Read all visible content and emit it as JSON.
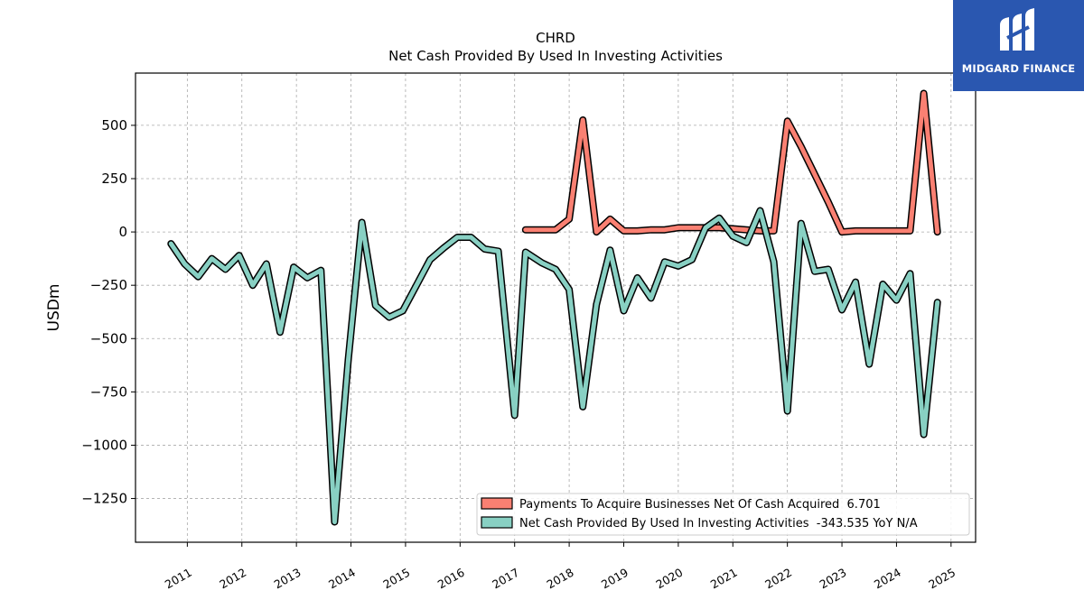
{
  "brand": {
    "name": "MIDGARD FINANCE",
    "color": "#2a57b0"
  },
  "chart_data": {
    "type": "line",
    "title": "CHRD",
    "subtitle": "Net Cash Provided By Used In Investing Activities",
    "ylabel": "USDm",
    "xlabel": "",
    "xlim": [
      2010.05,
      2025.45
    ],
    "ylim": [
      -1455,
      745
    ],
    "yticks": [
      500,
      250,
      0,
      -250,
      -500,
      -750,
      -1000,
      -1250
    ],
    "ytick_labels": [
      "500",
      "250",
      "0",
      "−250",
      "−500",
      "−750",
      "−1000",
      "−1250"
    ],
    "xticks": [
      2011,
      2012,
      2013,
      2014,
      2015,
      2016,
      2017,
      2018,
      2019,
      2020,
      2021,
      2022,
      2023,
      2024,
      2025
    ],
    "xtick_labels": [
      "2011",
      "2012",
      "2013",
      "2014",
      "2015",
      "2016",
      "2017",
      "2018",
      "2019",
      "2020",
      "2021",
      "2022",
      "2023",
      "2024",
      "2025"
    ],
    "grid": true,
    "legend_position": "lower-right",
    "series": [
      {
        "name": "Payments To Acquire Businesses Net Of Cash Acquired  6.701",
        "color": "#fa8072",
        "x": [
          2017.2,
          2017.5,
          2017.75,
          2018.0,
          2018.25,
          2018.5,
          2018.75,
          2019.0,
          2019.25,
          2019.5,
          2019.75,
          2020.0,
          2020.25,
          2020.5,
          2020.75,
          2021.0,
          2021.25,
          2021.5,
          2021.75,
          2022.0,
          2022.25,
          2022.5,
          2022.75,
          2023.0,
          2023.25,
          2023.5,
          2023.75,
          2024.0,
          2024.25,
          2024.5,
          2024.75
        ],
        "y": [
          10,
          10,
          10,
          60,
          525,
          0,
          60,
          5,
          5,
          10,
          10,
          20,
          20,
          20,
          20,
          15,
          10,
          5,
          5,
          520,
          400,
          270,
          140,
          0,
          5,
          5,
          5,
          5,
          5,
          650,
          0
        ]
      },
      {
        "name": "Net Cash Provided By Used In Investing Activities  -343.535 YoY N/A",
        "color": "#88d0c3",
        "x": [
          2010.7,
          2010.95,
          2011.2,
          2011.45,
          2011.7,
          2011.95,
          2012.2,
          2012.45,
          2012.7,
          2012.95,
          2013.2,
          2013.45,
          2013.7,
          2013.95,
          2014.2,
          2014.45,
          2014.7,
          2014.95,
          2015.2,
          2015.45,
          2015.7,
          2015.95,
          2016.2,
          2016.45,
          2016.7,
          2017.0,
          2017.2,
          2017.5,
          2017.75,
          2018.0,
          2018.25,
          2018.5,
          2018.75,
          2019.0,
          2019.25,
          2019.5,
          2019.75,
          2020.0,
          2020.25,
          2020.5,
          2020.75,
          2021.0,
          2021.25,
          2021.5,
          2021.75,
          2022.0,
          2022.25,
          2022.5,
          2022.75,
          2023.0,
          2023.25,
          2023.5,
          2023.75,
          2024.0,
          2024.25,
          2024.5,
          2024.75
        ],
        "y": [
          -55,
          -150,
          -210,
          -125,
          -175,
          -110,
          -250,
          -150,
          -470,
          -165,
          -215,
          -180,
          -1360,
          -600,
          45,
          -345,
          -400,
          -370,
          -250,
          -130,
          -75,
          -25,
          -25,
          -80,
          -90,
          -860,
          -95,
          -145,
          -175,
          -270,
          -820,
          -340,
          -85,
          -370,
          -215,
          -310,
          -140,
          -160,
          -130,
          20,
          65,
          -20,
          -50,
          100,
          -140,
          -840,
          40,
          -185,
          -175,
          -365,
          -235,
          -620,
          -245,
          -320,
          -195,
          -950,
          -330
        ]
      }
    ]
  }
}
